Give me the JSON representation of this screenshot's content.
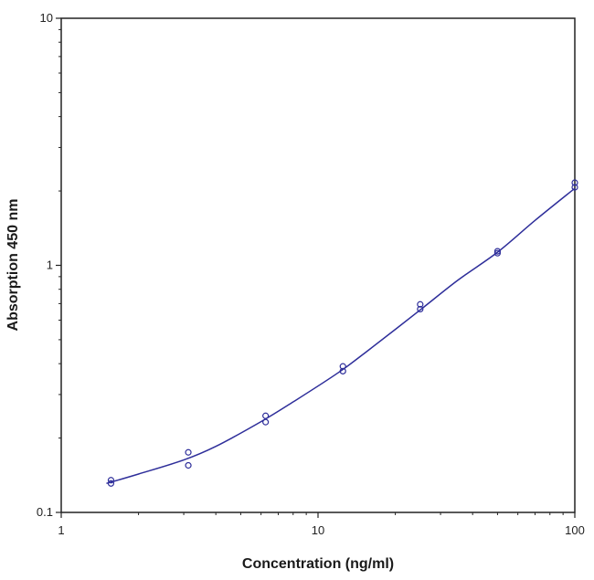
{
  "chart_data": {
    "type": "scatter",
    "title": "",
    "xlabel": "Concentration (ng/ml)",
    "ylabel": "Absorption 450 nm",
    "x_scale": "log",
    "y_scale": "log",
    "xlim": [
      1,
      100
    ],
    "ylim": [
      0.1,
      10
    ],
    "x_ticks": [
      1,
      10,
      100
    ],
    "y_ticks": [
      0.1,
      1,
      10
    ],
    "x_tick_labels": [
      "1",
      "10",
      "100"
    ],
    "y_tick_labels": [
      "0.1",
      "1",
      "10"
    ],
    "grid": false,
    "legend": "none",
    "colors": {
      "series": "#2e2e9a",
      "axis": "#222222"
    },
    "series": [
      {
        "points": [
          {
            "x": 1.5625,
            "y": 0.135
          },
          {
            "x": 1.5625,
            "y": 0.131
          },
          {
            "x": 3.125,
            "y": 0.175
          },
          {
            "x": 3.125,
            "y": 0.155
          },
          {
            "x": 6.25,
            "y": 0.246
          },
          {
            "x": 6.25,
            "y": 0.232
          },
          {
            "x": 12.5,
            "y": 0.39
          },
          {
            "x": 12.5,
            "y": 0.373
          },
          {
            "x": 25,
            "y": 0.695
          },
          {
            "x": 25,
            "y": 0.665
          },
          {
            "x": 50,
            "y": 1.14
          },
          {
            "x": 50,
            "y": 1.12
          },
          {
            "x": 100,
            "y": 2.16
          },
          {
            "x": 100,
            "y": 2.07
          }
        ],
        "fit_curve": [
          {
            "x": 1.5,
            "y": 0.131
          },
          {
            "x": 2,
            "y": 0.143
          },
          {
            "x": 3,
            "y": 0.163
          },
          {
            "x": 4,
            "y": 0.185
          },
          {
            "x": 6,
            "y": 0.233
          },
          {
            "x": 8,
            "y": 0.28
          },
          {
            "x": 12,
            "y": 0.368
          },
          {
            "x": 16,
            "y": 0.46
          },
          {
            "x": 25,
            "y": 0.66
          },
          {
            "x": 35,
            "y": 0.87
          },
          {
            "x": 50,
            "y": 1.13
          },
          {
            "x": 70,
            "y": 1.52
          },
          {
            "x": 100,
            "y": 2.05
          }
        ]
      }
    ]
  }
}
